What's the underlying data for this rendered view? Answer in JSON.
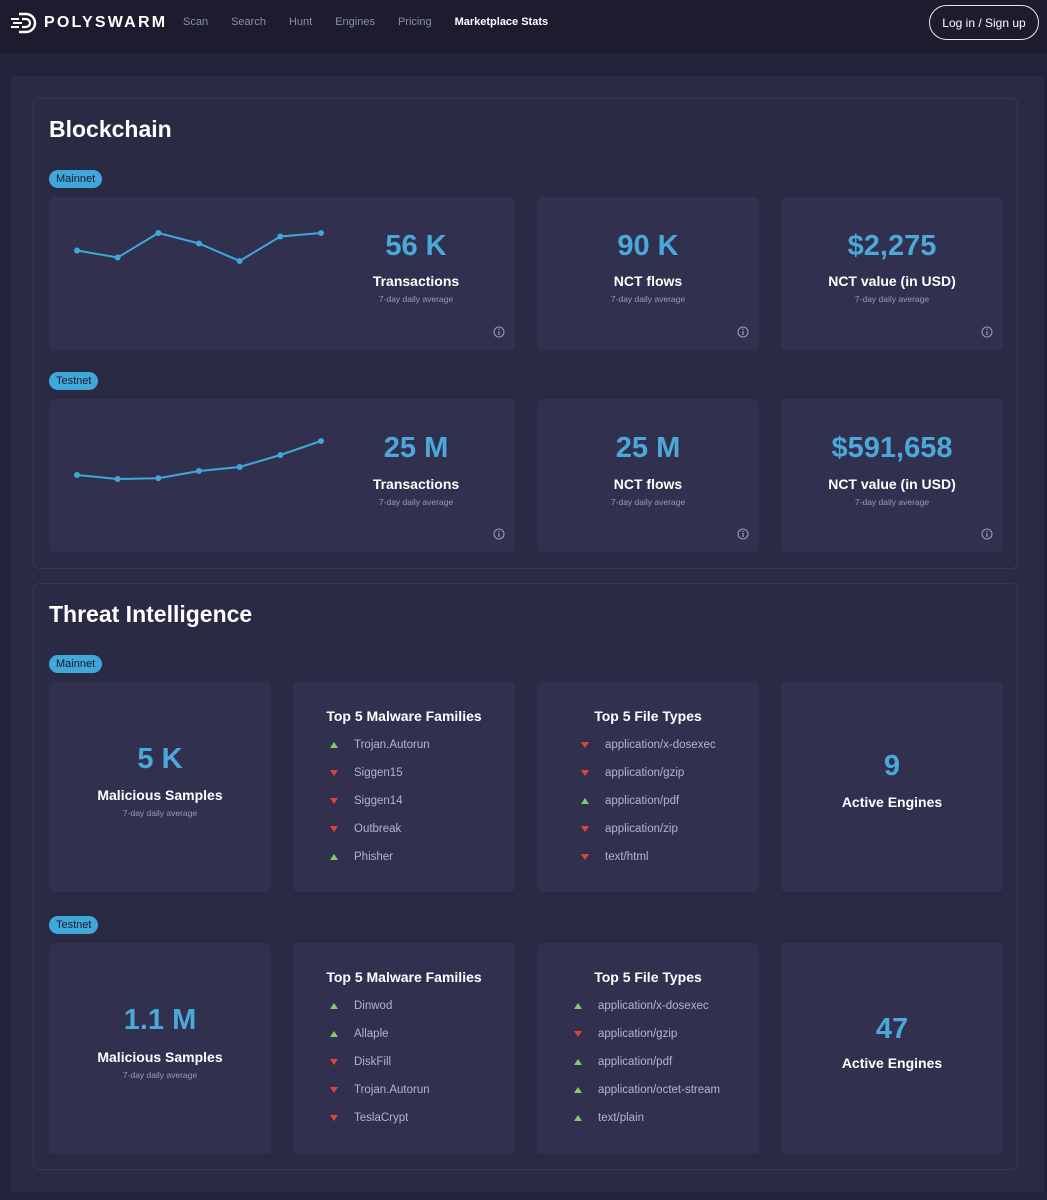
{
  "header": {
    "brand": "POLYSWARM",
    "nav": [
      "Scan",
      "Search",
      "Hunt",
      "Engines",
      "Pricing",
      "Marketplace Stats"
    ],
    "active_nav": "Marketplace Stats",
    "login_label": "Log in / Sign up"
  },
  "blockchain": {
    "title": "Blockchain",
    "mainnet": {
      "badge": "Mainnet",
      "transactions": {
        "value": "56 K",
        "label": "Transactions",
        "sub": "7-day daily average"
      },
      "nct_flows": {
        "value": "90 K",
        "label": "NCT flows",
        "sub": "7-day daily average"
      },
      "nct_value": {
        "value": "$2,275",
        "label": "NCT value (in USD)",
        "sub": "7-day daily average"
      },
      "sparkline": [
        54,
        52,
        59,
        56,
        51,
        58,
        59
      ]
    },
    "testnet": {
      "badge": "Testnet",
      "transactions": {
        "value": "25 M",
        "label": "Transactions",
        "sub": "7-day daily average"
      },
      "nct_flows": {
        "value": "25 M",
        "label": "NCT flows",
        "sub": "7-day daily average"
      },
      "nct_value": {
        "value": "$591,658",
        "label": "NCT value (in USD)",
        "sub": "7-day daily average"
      },
      "sparkline": [
        35,
        34,
        34.2,
        36,
        37,
        40,
        43.5
      ]
    }
  },
  "threat": {
    "title": "Threat Intelligence",
    "mainnet": {
      "badge": "Mainnet",
      "samples": {
        "value": "5 K",
        "label": "Malicious Samples",
        "sub": "7-day daily average"
      },
      "families": {
        "title": "Top 5 Malware Families",
        "items": [
          {
            "name": "Trojan.Autorun",
            "trend": "up"
          },
          {
            "name": "Siggen15",
            "trend": "down"
          },
          {
            "name": "Siggen14",
            "trend": "down"
          },
          {
            "name": "Outbreak",
            "trend": "down"
          },
          {
            "name": "Phisher",
            "trend": "up"
          }
        ]
      },
      "filetypes": {
        "title": "Top 5 File Types",
        "items": [
          {
            "name": "application/x-dosexec",
            "trend": "down"
          },
          {
            "name": "application/gzip",
            "trend": "down"
          },
          {
            "name": "application/pdf",
            "trend": "up"
          },
          {
            "name": "application/zip",
            "trend": "down"
          },
          {
            "name": "text/html",
            "trend": "down"
          }
        ]
      },
      "engines": {
        "value": "9",
        "label": "Active Engines"
      }
    },
    "testnet": {
      "badge": "Testnet",
      "samples": {
        "value": "1.1 M",
        "label": "Malicious Samples",
        "sub": "7-day daily average"
      },
      "families": {
        "title": "Top 5 Malware Families",
        "items": [
          {
            "name": "Dinwod",
            "trend": "up"
          },
          {
            "name": "Allaple",
            "trend": "up"
          },
          {
            "name": "DiskFill",
            "trend": "down"
          },
          {
            "name": "Trojan.Autorun",
            "trend": "down"
          },
          {
            "name": "TeslaCrypt",
            "trend": "down"
          }
        ]
      },
      "filetypes": {
        "title": "Top 5 File Types",
        "items": [
          {
            "name": "application/x-dosexec",
            "trend": "up"
          },
          {
            "name": "application/gzip",
            "trend": "down"
          },
          {
            "name": "application/pdf",
            "trend": "up"
          },
          {
            "name": "application/octet-stream",
            "trend": "up"
          },
          {
            "name": "text/plain",
            "trend": "up"
          }
        ]
      },
      "engines": {
        "value": "47",
        "label": "Active Engines"
      }
    }
  },
  "colors": {
    "accent": "#3fa7d9",
    "up": "#7fcb6b",
    "down": "#e0433a"
  }
}
